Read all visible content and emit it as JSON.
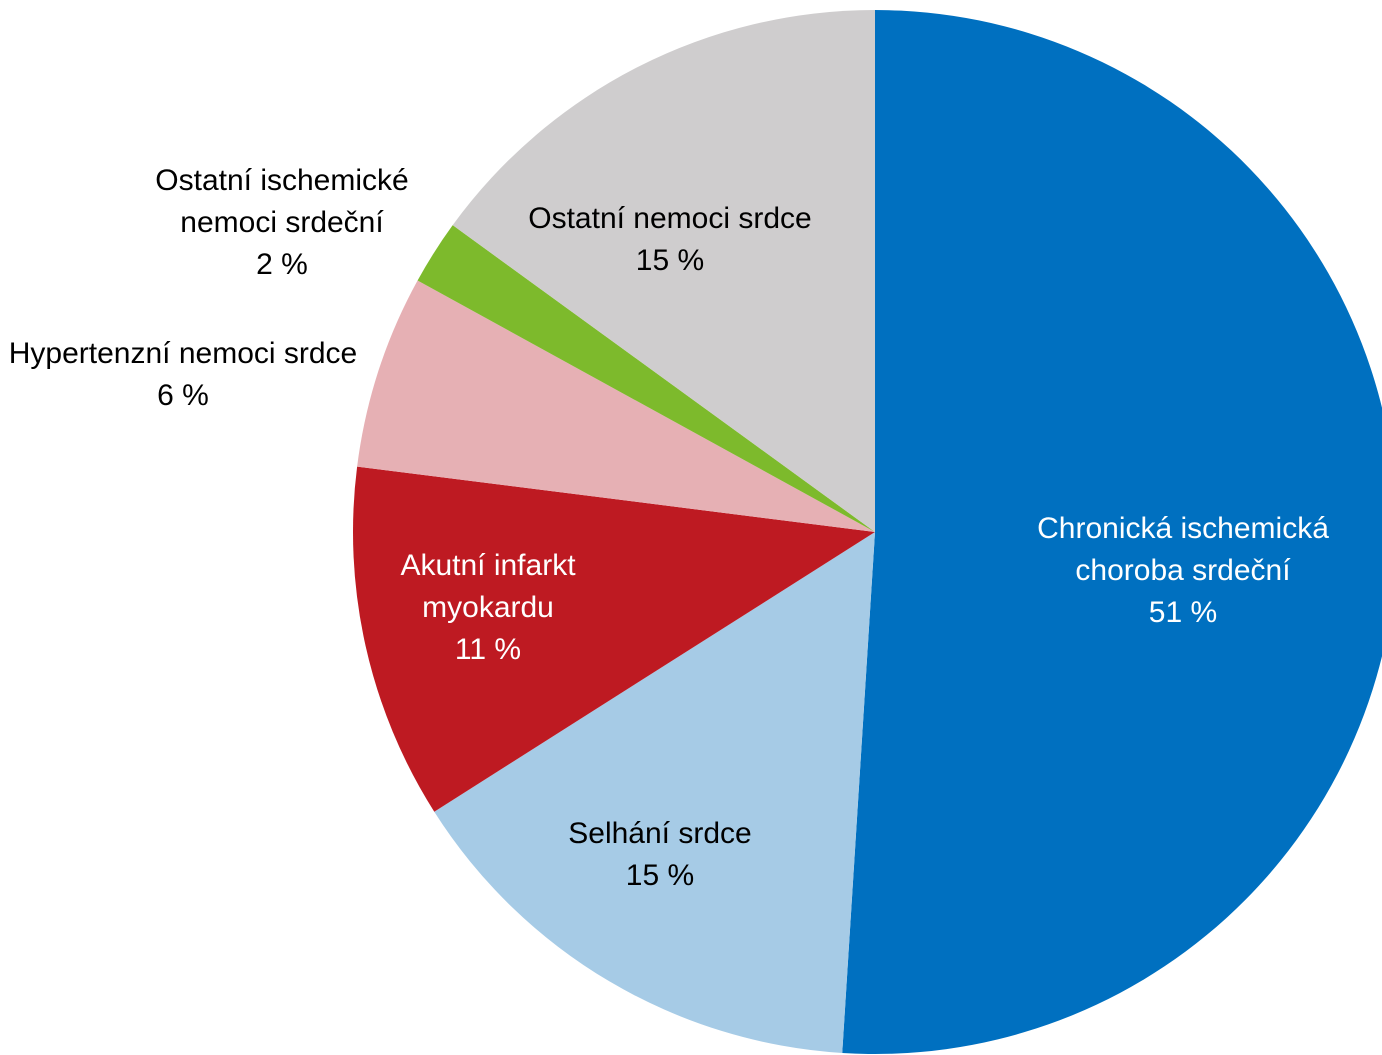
{
  "chart_data": {
    "type": "pie",
    "categories": [
      "Chronická ischemická choroba srdeční",
      "Selhání srdce",
      "Akutní infarkt myokardu",
      "Hypertenzní nemoci srdce",
      "Ostatní ischemické nemoci srdeční",
      "Ostatní nemoci srdce"
    ],
    "values": [
      51,
      15,
      11,
      6,
      2,
      15
    ],
    "value_labels": [
      "51 %",
      "15 %",
      "11 %",
      "6 %",
      "2 %",
      "15 %"
    ],
    "colors": [
      "#0070c0",
      "#a6cbe6",
      "#be1a22",
      "#e6b0b4",
      "#7dba2c",
      "#cfcdce"
    ]
  }
}
